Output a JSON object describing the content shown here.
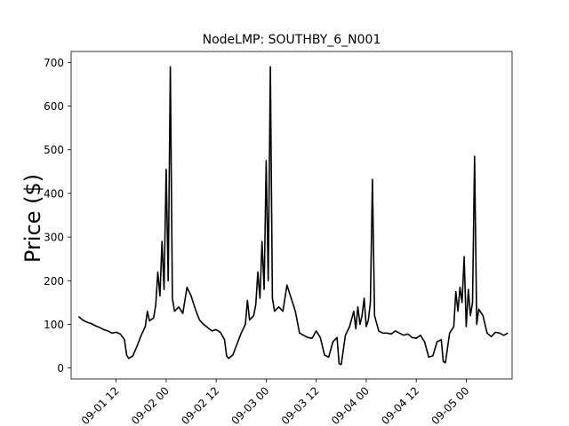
{
  "chart_data": {
    "type": "line",
    "title": "NodeLMP: SOUTHBY_6_N001",
    "xlabel": "",
    "ylabel": "Price ($)",
    "xlim": [
      "2021-09-01 01:12",
      "2021-09-05 11:00"
    ],
    "ylim": [
      -25,
      725
    ],
    "grid": false,
    "legend": "none",
    "line_color": "#000000",
    "yticks": [
      0,
      100,
      200,
      300,
      400,
      500,
      600,
      700
    ],
    "xticks": [
      {
        "at": "2021-09-01 12:00",
        "label": "09-01 12"
      },
      {
        "at": "2021-09-02 00:00",
        "label": "09-02 00"
      },
      {
        "at": "2021-09-02 12:00",
        "label": "09-02 12"
      },
      {
        "at": "2021-09-03 00:00",
        "label": "09-03 00"
      },
      {
        "at": "2021-09-03 12:00",
        "label": "09-03 12"
      },
      {
        "at": "2021-09-04 00:00",
        "label": "09-04 00"
      },
      {
        "at": "2021-09-04 12:00",
        "label": "09-04 12"
      },
      {
        "at": "2021-09-05 00:00",
        "label": "09-05 00"
      }
    ],
    "series": [
      {
        "points": [
          [
            "2021-09-01 03:00",
            118
          ],
          [
            "2021-09-01 04:00",
            110
          ],
          [
            "2021-09-01 05:00",
            105
          ],
          [
            "2021-09-01 06:00",
            102
          ],
          [
            "2021-09-01 07:00",
            97
          ],
          [
            "2021-09-01 08:00",
            93
          ],
          [
            "2021-09-01 09:00",
            88
          ],
          [
            "2021-09-01 10:00",
            85
          ],
          [
            "2021-09-01 11:00",
            80
          ],
          [
            "2021-09-01 12:00",
            82
          ],
          [
            "2021-09-01 13:00",
            78
          ],
          [
            "2021-09-01 14:00",
            65
          ],
          [
            "2021-09-01 14:30",
            30
          ],
          [
            "2021-09-01 15:00",
            22
          ],
          [
            "2021-09-01 16:00",
            28
          ],
          [
            "2021-09-01 17:00",
            50
          ],
          [
            "2021-09-01 18:00",
            75
          ],
          [
            "2021-09-01 19:00",
            95
          ],
          [
            "2021-09-01 19:30",
            130
          ],
          [
            "2021-09-01 20:00",
            108
          ],
          [
            "2021-09-01 21:00",
            115
          ],
          [
            "2021-09-01 21:30",
            145
          ],
          [
            "2021-09-01 22:00",
            220
          ],
          [
            "2021-09-01 22:30",
            165
          ],
          [
            "2021-09-01 23:00",
            290
          ],
          [
            "2021-09-01 23:30",
            180
          ],
          [
            "2021-09-02 00:00",
            455
          ],
          [
            "2021-09-02 00:30",
            200
          ],
          [
            "2021-09-02 01:00",
            690
          ],
          [
            "2021-09-02 01:30",
            160
          ],
          [
            "2021-09-02 02:00",
            130
          ],
          [
            "2021-09-02 03:00",
            140
          ],
          [
            "2021-09-02 04:00",
            125
          ],
          [
            "2021-09-02 05:00",
            185
          ],
          [
            "2021-09-02 06:00",
            165
          ],
          [
            "2021-09-02 07:00",
            135
          ],
          [
            "2021-09-02 08:00",
            110
          ],
          [
            "2021-09-02 09:00",
            100
          ],
          [
            "2021-09-02 10:00",
            92
          ],
          [
            "2021-09-02 11:00",
            85
          ],
          [
            "2021-09-02 12:00",
            88
          ],
          [
            "2021-09-02 13:00",
            82
          ],
          [
            "2021-09-02 14:00",
            65
          ],
          [
            "2021-09-02 14:30",
            28
          ],
          [
            "2021-09-02 15:00",
            22
          ],
          [
            "2021-09-02 16:00",
            30
          ],
          [
            "2021-09-02 17:00",
            55
          ],
          [
            "2021-09-02 18:00",
            80
          ],
          [
            "2021-09-02 19:00",
            100
          ],
          [
            "2021-09-02 19:30",
            155
          ],
          [
            "2021-09-02 20:00",
            110
          ],
          [
            "2021-09-02 21:00",
            120
          ],
          [
            "2021-09-02 21:30",
            145
          ],
          [
            "2021-09-02 22:00",
            220
          ],
          [
            "2021-09-02 22:30",
            160
          ],
          [
            "2021-09-02 23:00",
            290
          ],
          [
            "2021-09-02 23:30",
            180
          ],
          [
            "2021-09-03 00:00",
            475
          ],
          [
            "2021-09-03 00:30",
            200
          ],
          [
            "2021-09-03 01:00",
            690
          ],
          [
            "2021-09-03 01:30",
            160
          ],
          [
            "2021-09-03 02:00",
            130
          ],
          [
            "2021-09-03 03:00",
            140
          ],
          [
            "2021-09-03 04:00",
            130
          ],
          [
            "2021-09-03 05:00",
            190
          ],
          [
            "2021-09-03 06:00",
            160
          ],
          [
            "2021-09-03 07:00",
            130
          ],
          [
            "2021-09-03 08:00",
            80
          ],
          [
            "2021-09-03 09:00",
            75
          ],
          [
            "2021-09-03 10:00",
            70
          ],
          [
            "2021-09-03 11:00",
            68
          ],
          [
            "2021-09-03 12:00",
            85
          ],
          [
            "2021-09-03 13:00",
            70
          ],
          [
            "2021-09-03 14:00",
            30
          ],
          [
            "2021-09-03 15:00",
            25
          ],
          [
            "2021-09-03 16:00",
            60
          ],
          [
            "2021-09-03 17:00",
            70
          ],
          [
            "2021-09-03 17:30",
            10
          ],
          [
            "2021-09-03 18:00",
            8
          ],
          [
            "2021-09-03 19:00",
            75
          ],
          [
            "2021-09-03 20:00",
            95
          ],
          [
            "2021-09-03 21:00",
            130
          ],
          [
            "2021-09-03 21:30",
            90
          ],
          [
            "2021-09-03 22:00",
            140
          ],
          [
            "2021-09-03 22:30",
            100
          ],
          [
            "2021-09-03 23:00",
            120
          ],
          [
            "2021-09-03 23:30",
            160
          ],
          [
            "2021-09-04 00:00",
            95
          ],
          [
            "2021-09-04 00:30",
            110
          ],
          [
            "2021-09-04 01:00",
            150
          ],
          [
            "2021-09-04 01:30",
            432
          ],
          [
            "2021-09-04 02:00",
            120
          ],
          [
            "2021-09-04 03:00",
            85
          ],
          [
            "2021-09-04 04:00",
            80
          ],
          [
            "2021-09-04 05:00",
            80
          ],
          [
            "2021-09-04 06:00",
            78
          ],
          [
            "2021-09-04 07:00",
            85
          ],
          [
            "2021-09-04 08:00",
            80
          ],
          [
            "2021-09-04 09:00",
            75
          ],
          [
            "2021-09-04 10:00",
            78
          ],
          [
            "2021-09-04 11:00",
            70
          ],
          [
            "2021-09-04 12:00",
            68
          ],
          [
            "2021-09-04 13:00",
            75
          ],
          [
            "2021-09-04 14:00",
            60
          ],
          [
            "2021-09-04 15:00",
            25
          ],
          [
            "2021-09-04 16:00",
            28
          ],
          [
            "2021-09-04 17:00",
            60
          ],
          [
            "2021-09-04 18:00",
            65
          ],
          [
            "2021-09-04 18:30",
            15
          ],
          [
            "2021-09-04 19:00",
            12
          ],
          [
            "2021-09-04 20:00",
            80
          ],
          [
            "2021-09-04 21:00",
            95
          ],
          [
            "2021-09-04 21:30",
            175
          ],
          [
            "2021-09-04 22:00",
            130
          ],
          [
            "2021-09-04 22:30",
            185
          ],
          [
            "2021-09-04 23:00",
            150
          ],
          [
            "2021-09-04 23:30",
            255
          ],
          [
            "2021-09-05 00:00",
            95
          ],
          [
            "2021-09-05 00:30",
            180
          ],
          [
            "2021-09-05 01:00",
            120
          ],
          [
            "2021-09-05 01:30",
            150
          ],
          [
            "2021-09-05 02:00",
            485
          ],
          [
            "2021-09-05 02:30",
            100
          ],
          [
            "2021-09-05 03:00",
            135
          ],
          [
            "2021-09-05 04:00",
            120
          ],
          [
            "2021-09-05 05:00",
            80
          ],
          [
            "2021-09-05 06:00",
            72
          ],
          [
            "2021-09-05 07:00",
            82
          ],
          [
            "2021-09-05 08:00",
            80
          ],
          [
            "2021-09-05 09:00",
            75
          ],
          [
            "2021-09-05 10:00",
            80
          ]
        ]
      }
    ]
  }
}
